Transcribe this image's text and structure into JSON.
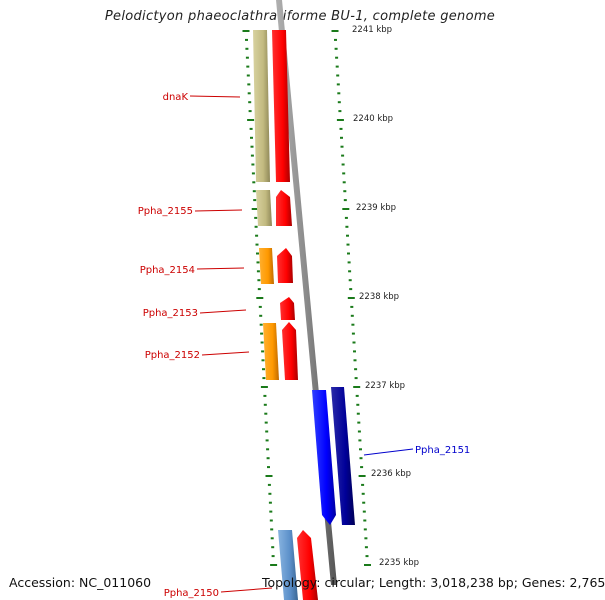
{
  "title": "Pelodictyon phaeoclathratiforme BU-1, complete genome",
  "footer": {
    "accession": "Accession: NC_011060",
    "info": "Topology: circular; Length: 3,018,238 bp; Genes: 2,765"
  },
  "colors": {
    "backbone": "#888888",
    "tick": "#1a7a1a",
    "plus_label": "#cc0000",
    "minus_label": "#0000cc"
  },
  "kbp_labels": [
    "2241 kbp",
    "2240 kbp",
    "2239 kbp",
    "2238 kbp",
    "2237 kbp",
    "2236 kbp",
    "2235 kbp"
  ],
  "genes": [
    {
      "label": "dnaK",
      "strand": "plus",
      "cds_color": "#ff0000",
      "gene_color": "#c8c18a"
    },
    {
      "label": "Ppha_2155",
      "strand": "plus",
      "cds_color": "#ff0000",
      "gene_color": "#c8c18a"
    },
    {
      "label": "Ppha_2154",
      "strand": "plus",
      "cds_color": "#ff0000",
      "gene_color": "#ff9900"
    },
    {
      "label": "Ppha_2153",
      "strand": "plus",
      "cds_color": "#ff0000",
      "gene_color": ""
    },
    {
      "label": "Ppha_2152",
      "strand": "plus",
      "cds_color": "#ff0000",
      "gene_color": "#ff9900"
    },
    {
      "label": "Ppha_2151",
      "strand": "minus",
      "cds_color": "#0000ff",
      "gene_color": "#000099"
    },
    {
      "label": "Ppha_2150",
      "strand": "plus",
      "cds_color": "#ff0000",
      "gene_color": "#5b8fc9"
    }
  ]
}
